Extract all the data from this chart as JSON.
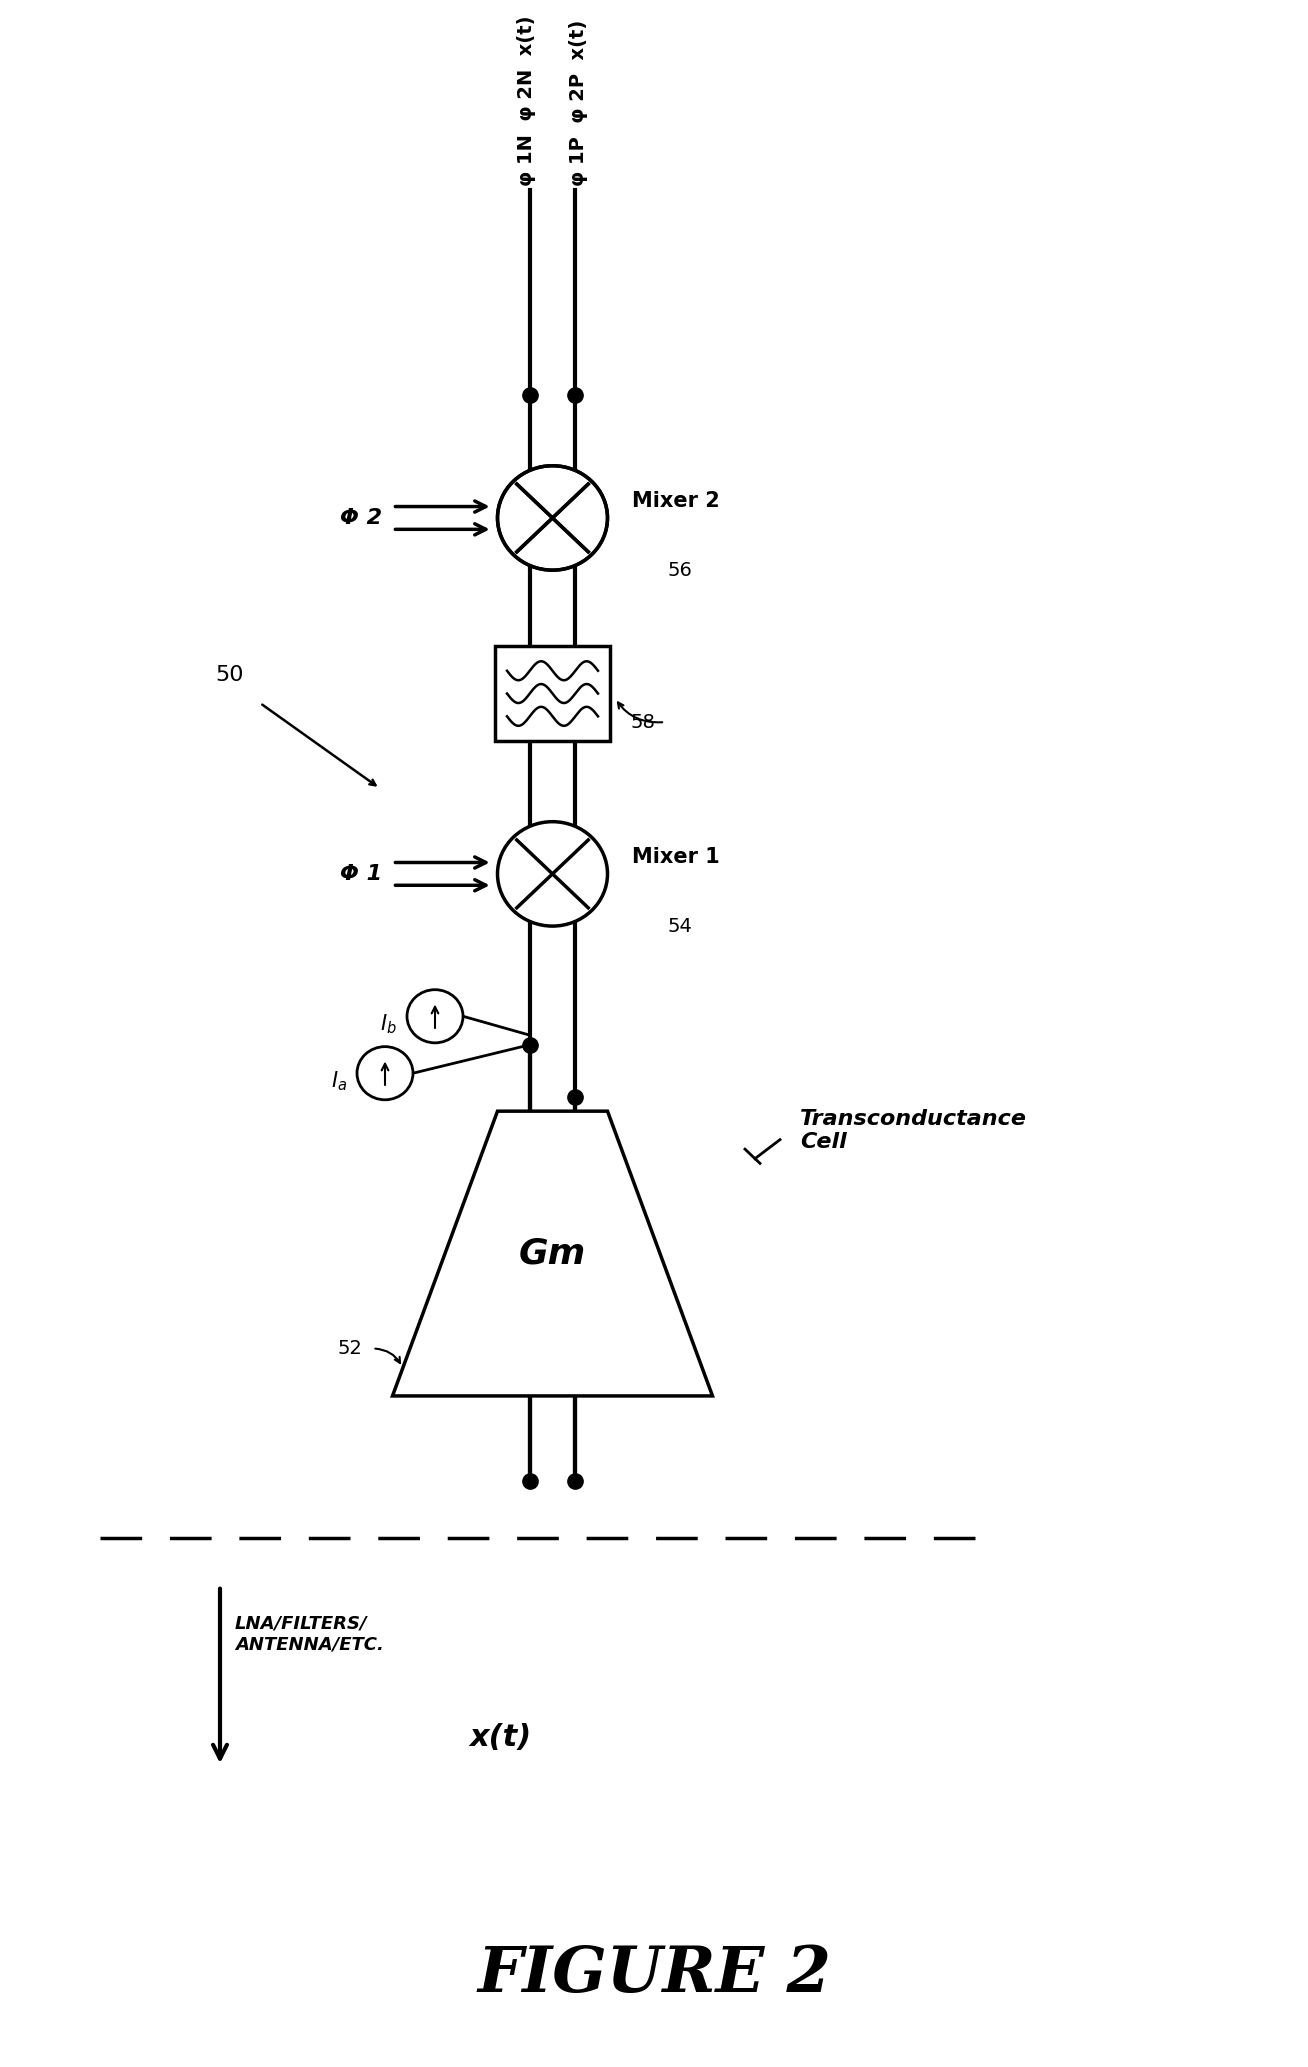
{
  "title": "FIGURE 2",
  "background_color": "#ffffff",
  "lna_label": "LNA/FILTERS/\nANTENNA/ETC.",
  "xt_label": "x(t)",
  "gm_text": "Gm",
  "mixer1_text": "Mixer 1",
  "mixer2_text": "Mixer 2",
  "transconductance_label": "Transconductance\nCell",
  "phi1_label": "Φ 1",
  "phi2_label": "Φ 2",
  "label_50": "50",
  "label_52": "52",
  "label_54": "54",
  "label_56": "56",
  "label_58": "58",
  "top_wire_label_left": "φ 1N  φ 2N  x(t)",
  "top_wire_label_right": "φ 1P  φ 2P  x(t)"
}
